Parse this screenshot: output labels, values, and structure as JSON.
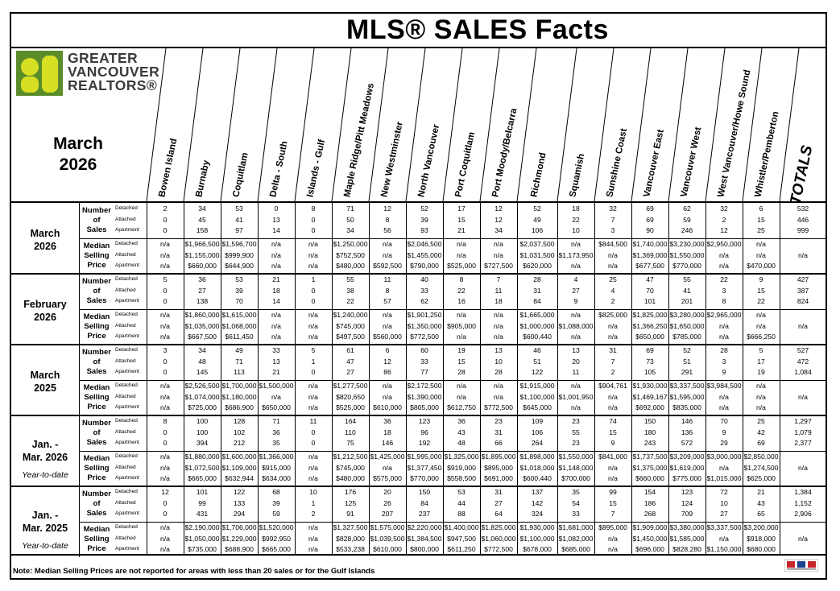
{
  "title": "MLS® SALES Facts",
  "brand": {
    "lines": [
      "GREATER",
      "VANCOUVER",
      "REALTORS®"
    ],
    "color": "#5b8c2a"
  },
  "period_title": [
    "March",
    "2026"
  ],
  "columns": [
    "Bowen Island",
    "Burnaby",
    "Coquitlam",
    "Delta - South",
    "Islands - Gulf",
    "Maple Ridge/Pitt Meadows",
    "New Westminster",
    "North Vancouver",
    "Port Coquitlam",
    "Port Moody/Belcarra",
    "Richmond",
    "Squamish",
    "Sunshine Coast",
    "Vancouver East",
    "Vancouver West",
    "West Vancouver/Howe Sound",
    "Whistler/Pemberton",
    "TOTALS"
  ],
  "metric_labels": {
    "sales": [
      "Number",
      "of",
      "Sales"
    ],
    "price": [
      "Median",
      "Selling",
      "Price"
    ]
  },
  "sub_labels": [
    "Detached",
    "Attached",
    "Apartment"
  ],
  "groups": [
    {
      "label": [
        "March",
        "2026"
      ],
      "ytd": "",
      "sales": [
        [
          "2",
          "34",
          "53",
          "0",
          "8",
          "71",
          "12",
          "52",
          "17",
          "12",
          "52",
          "18",
          "32",
          "69",
          "62",
          "32",
          "6",
          "532"
        ],
        [
          "0",
          "45",
          "41",
          "13",
          "0",
          "50",
          "8",
          "39",
          "15",
          "12",
          "49",
          "22",
          "7",
          "69",
          "59",
          "2",
          "15",
          "446"
        ],
        [
          "0",
          "158",
          "97",
          "14",
          "0",
          "34",
          "56",
          "93",
          "21",
          "34",
          "106",
          "10",
          "3",
          "90",
          "246",
          "12",
          "25",
          "999"
        ]
      ],
      "price": [
        [
          "n/a",
          "$1,966,500",
          "$1,596,700",
          "n/a",
          "n/a",
          "$1,250,000",
          "n/a",
          "$2,046,500",
          "n/a",
          "n/a",
          "$2,037,500",
          "n/a",
          "$844,500",
          "$1,740,000",
          "$3,230,000",
          "$2,950,000",
          "n/a",
          ""
        ],
        [
          "n/a",
          "$1,155,000",
          "$999,900",
          "n/a",
          "n/a",
          "$752,500",
          "n/a",
          "$1,455,000",
          "n/a",
          "n/a",
          "$1,031,500",
          "$1,173,950",
          "n/a",
          "$1,369,000",
          "$1,550,000",
          "n/a",
          "n/a",
          "n/a"
        ],
        [
          "n/a",
          "$660,000",
          "$644,900",
          "n/a",
          "n/a",
          "$480,000",
          "$592,500",
          "$790,000",
          "$525,000",
          "$727,500",
          "$620,000",
          "n/a",
          "n/a",
          "$677,500",
          "$770,000",
          "n/a",
          "$470,000",
          ""
        ]
      ]
    },
    {
      "label": [
        "February",
        "2026"
      ],
      "ytd": "",
      "sales": [
        [
          "5",
          "36",
          "53",
          "21",
          "1",
          "55",
          "11",
          "40",
          "8",
          "7",
          "28",
          "4",
          "25",
          "47",
          "55",
          "22",
          "9",
          "427"
        ],
        [
          "0",
          "27",
          "39",
          "18",
          "0",
          "38",
          "8",
          "33",
          "22",
          "11",
          "31",
          "27",
          "4",
          "70",
          "41",
          "3",
          "15",
          "387"
        ],
        [
          "0",
          "138",
          "70",
          "14",
          "0",
          "22",
          "57",
          "62",
          "16",
          "18",
          "84",
          "9",
          "2",
          "101",
          "201",
          "8",
          "22",
          "824"
        ]
      ],
      "price": [
        [
          "n/a",
          "$1,860,000",
          "$1,615,000",
          "n/a",
          "n/a",
          "$1,240,000",
          "n/a",
          "$1,901,250",
          "n/a",
          "n/a",
          "$1,665,000",
          "n/a",
          "$825,000",
          "$1,825,000",
          "$3,280,000",
          "$2,965,000",
          "n/a",
          ""
        ],
        [
          "n/a",
          "$1,035,000",
          "$1,068,000",
          "n/a",
          "n/a",
          "$745,000",
          "n/a",
          "$1,350,000",
          "$905,000",
          "n/a",
          "$1,000,000",
          "$1,088,000",
          "n/a",
          "$1,366,250",
          "$1,650,000",
          "n/a",
          "n/a",
          "n/a"
        ],
        [
          "n/a",
          "$667,500",
          "$611,450",
          "n/a",
          "n/a",
          "$497,500",
          "$560,000",
          "$772,500",
          "n/a",
          "n/a",
          "$600,440",
          "n/a",
          "n/a",
          "$650,000",
          "$785,000",
          "n/a",
          "$666,250",
          ""
        ]
      ]
    },
    {
      "label": [
        "March",
        "2025"
      ],
      "ytd": "",
      "sales": [
        [
          "3",
          "34",
          "49",
          "33",
          "5",
          "61",
          "6",
          "60",
          "19",
          "13",
          "46",
          "13",
          "31",
          "69",
          "52",
          "28",
          "5",
          "527"
        ],
        [
          "0",
          "48",
          "71",
          "13",
          "1",
          "47",
          "12",
          "33",
          "15",
          "10",
          "51",
          "20",
          "7",
          "73",
          "51",
          "3",
          "17",
          "472"
        ],
        [
          "0",
          "145",
          "113",
          "21",
          "0",
          "27",
          "86",
          "77",
          "28",
          "28",
          "122",
          "11",
          "2",
          "105",
          "291",
          "9",
          "19",
          "1,084"
        ]
      ],
      "price": [
        [
          "n/a",
          "$2,526,500",
          "$1,700,000",
          "$1,500,000",
          "n/a",
          "$1,277,500",
          "n/a",
          "$2,172,500",
          "n/a",
          "n/a",
          "$1,915,000",
          "n/a",
          "$904,761",
          "$1,930,000",
          "$3,337,500",
          "$3,984,500",
          "n/a",
          ""
        ],
        [
          "n/a",
          "$1,074,000",
          "$1,180,000",
          "n/a",
          "n/a",
          "$820,650",
          "n/a",
          "$1,390,000",
          "n/a",
          "n/a",
          "$1,100,000",
          "$1,001,950",
          "n/a",
          "$1,469,167",
          "$1,595,000",
          "n/a",
          "n/a",
          "n/a"
        ],
        [
          "n/a",
          "$725,000",
          "$686,900",
          "$650,000",
          "n/a",
          "$525,000",
          "$610,000",
          "$805,000",
          "$612,750",
          "$772,500",
          "$645,000",
          "n/a",
          "n/a",
          "$692,000",
          "$835,000",
          "n/a",
          "n/a",
          ""
        ]
      ]
    },
    {
      "label": [
        "Jan. -",
        "Mar. 2026"
      ],
      "ytd": "Year-to-date",
      "sales": [
        [
          "8",
          "100",
          "128",
          "71",
          "11",
          "164",
          "36",
          "123",
          "36",
          "23",
          "109",
          "23",
          "74",
          "150",
          "146",
          "70",
          "25",
          "1,297"
        ],
        [
          "0",
          "100",
          "102",
          "36",
          "0",
          "110",
          "18",
          "96",
          "43",
          "31",
          "106",
          "55",
          "15",
          "180",
          "136",
          "9",
          "42",
          "1,079"
        ],
        [
          "0",
          "394",
          "212",
          "35",
          "0",
          "75",
          "146",
          "192",
          "48",
          "66",
          "264",
          "23",
          "9",
          "243",
          "572",
          "29",
          "69",
          "2,377"
        ]
      ],
      "price": [
        [
          "n/a",
          "$1,880,000",
          "$1,600,000",
          "$1,366,000",
          "n/a",
          "$1,212,500",
          "$1,425,000",
          "$1,995,000",
          "$1,325,000",
          "$1,895,000",
          "$1,898,000",
          "$1,550,000",
          "$841,000",
          "$1,737,500",
          "$3,209,000",
          "$3,000,000",
          "$2,850,000",
          ""
        ],
        [
          "n/a",
          "$1,072,500",
          "$1,109,000",
          "$915,000",
          "n/a",
          "$745,000",
          "n/a",
          "$1,377,450",
          "$919,000",
          "$895,000",
          "$1,018,000",
          "$1,148,000",
          "n/a",
          "$1,375,000",
          "$1,619,000",
          "n/a",
          "$1,274,500",
          "n/a"
        ],
        [
          "n/a",
          "$665,000",
          "$632,944",
          "$634,000",
          "n/a",
          "$480,000",
          "$575,000",
          "$770,000",
          "$558,500",
          "$691,000",
          "$600,440",
          "$700,000",
          "n/a",
          "$660,000",
          "$775,000",
          "$1,015,000",
          "$625,000",
          ""
        ]
      ]
    },
    {
      "label": [
        "Jan. -",
        "Mar. 2025"
      ],
      "ytd": "Year-to-date",
      "sales": [
        [
          "12",
          "101",
          "122",
          "68",
          "10",
          "176",
          "20",
          "150",
          "53",
          "31",
          "137",
          "35",
          "99",
          "154",
          "123",
          "72",
          "21",
          "1,384"
        ],
        [
          "0",
          "99",
          "133",
          "39",
          "1",
          "125",
          "26",
          "84",
          "44",
          "27",
          "142",
          "54",
          "15",
          "186",
          "124",
          "10",
          "43",
          "1,152"
        ],
        [
          "0",
          "431",
          "294",
          "59",
          "2",
          "91",
          "207",
          "237",
          "88",
          "64",
          "324",
          "33",
          "7",
          "268",
          "709",
          "27",
          "65",
          "2,906"
        ]
      ],
      "price": [
        [
          "n/a",
          "$2,190,000",
          "$1,706,000",
          "$1,520,000",
          "n/a",
          "$1,327,500",
          "$1,575,000",
          "$2,220,000",
          "$1,400,000",
          "$1,825,000",
          "$1,930,000",
          "$1,681,000",
          "$895,000",
          "$1,909,000",
          "$3,380,000",
          "$3,337,500",
          "$3,200,000",
          ""
        ],
        [
          "n/a",
          "$1,050,000",
          "$1,229,000",
          "$992,950",
          "n/a",
          "$828,000",
          "$1,039,500",
          "$1,384,500",
          "$947,500",
          "$1,060,000",
          "$1,100,000",
          "$1,082,000",
          "n/a",
          "$1,450,000",
          "$1,585,000",
          "n/a",
          "$918,000",
          "n/a"
        ],
        [
          "n/a",
          "$735,000",
          "$688,900",
          "$665,000",
          "n/a",
          "$533,238",
          "$610,000",
          "$800,000",
          "$611,250",
          "$772,500",
          "$678,000",
          "$685,000",
          "n/a",
          "$696,000",
          "$828,280",
          "$1,150,000",
          "$680,000",
          ""
        ]
      ]
    }
  ],
  "note": "Note: Median Selling Prices are not reported for areas with less than 20 sales or  for the Gulf Islands",
  "footer_logo_icon": "mls-realtor-logo-icon"
}
